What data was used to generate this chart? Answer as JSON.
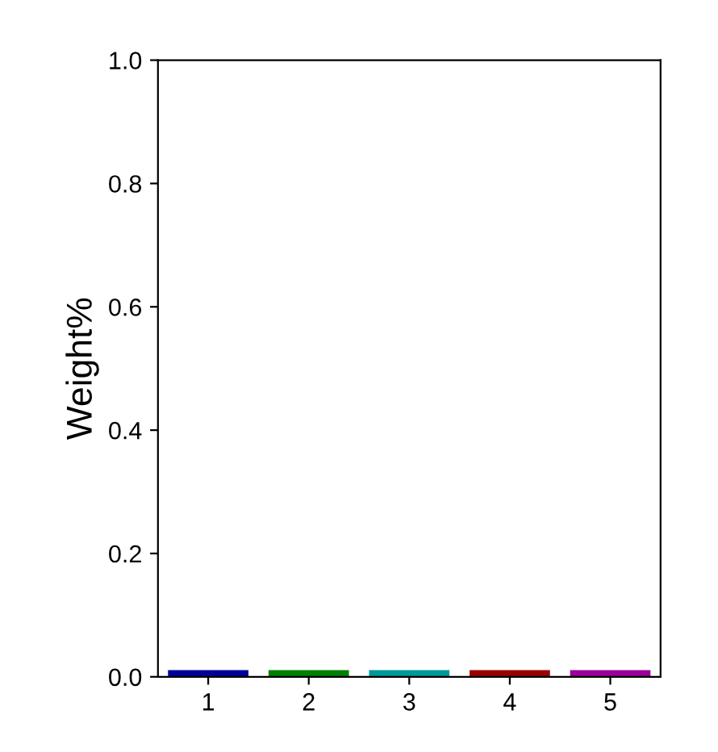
{
  "chart_data": {
    "type": "bar",
    "ylabel": "Weight%",
    "categories": [
      "1",
      "2",
      "3",
      "4",
      "5"
    ],
    "values": [
      0,
      0,
      0,
      0,
      0
    ],
    "colors": [
      "#000099",
      "#008000",
      "#009999",
      "#990000",
      "#990099"
    ],
    "ylim": [
      0,
      1.0
    ],
    "yticks": [
      {
        "value": 0,
        "label": "0.0"
      },
      {
        "value": 0.2,
        "label": "0.2"
      },
      {
        "value": 0.4,
        "label": "0.4"
      },
      {
        "value": 0.6,
        "label": "0.6"
      },
      {
        "value": 0.8,
        "label": "0.8"
      },
      {
        "value": 1.0,
        "label": "1.0"
      }
    ],
    "grid": false,
    "legend": false
  }
}
